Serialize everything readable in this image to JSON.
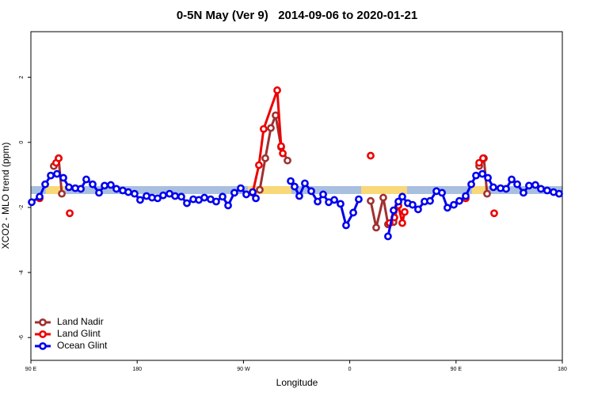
{
  "chart_data": {
    "type": "line",
    "title": "0-5N May (Ver 9)   2014-09-06 to 2020-01-21",
    "x_label": "Longitude",
    "y_label": "XCO2 - MLO trend (ppm)",
    "xlim": [
      90,
      540
    ],
    "ylim": [
      -6.7,
      3.4
    ],
    "xticks": [
      {
        "value": 90,
        "label": "90 E"
      },
      {
        "value": 180,
        "label": "180"
      },
      {
        "value": 270,
        "label": "90 W"
      },
      {
        "value": 360,
        "label": "0"
      },
      {
        "value": 450,
        "label": "90 E"
      },
      {
        "value": 540,
        "label": "180"
      }
    ],
    "yticks": [
      -6,
      -4,
      -2,
      0,
      2
    ],
    "grid": false,
    "legend": "bottom-left",
    "series": [
      {
        "name": "Land Nadir",
        "color": "#a03030",
        "x": [
          109.4,
          113.5,
          116.2,
          null,
          283.8,
          288.5,
          293.2,
          297.2,
          301.9,
          307.3,
          null,
          377.7,
          382.4,
          388.4,
          392.4,
          397.1,
          null,
          469.6,
          473.6,
          476.3
        ],
        "values": [
          -0.73,
          -0.49,
          -1.58,
          null,
          -1.46,
          -0.49,
          0.44,
          0.83,
          -0.15,
          -0.56,
          null,
          -1.8,
          -2.62,
          -1.7,
          -2.52,
          -2.45,
          null,
          -0.73,
          -0.49,
          -1.58
        ]
      },
      {
        "name": "Land Glint",
        "color": "#ee0000",
        "x": [
          97.4,
          null,
          111.4,
          113.5,
          null,
          122.9,
          null,
          277.8,
          283.1,
          287.1,
          298.6,
          301.9,
          303.3,
          null,
          377.7,
          null,
          393.8,
          397.8,
          401.2,
          404.5,
          406.5,
          null,
          458.2,
          null,
          469.6,
          472.9,
          null,
          482.3
        ],
        "values": [
          -1.72,
          null,
          -0.63,
          -0.49,
          null,
          -2.18,
          null,
          -1.55,
          -0.7,
          0.41,
          1.6,
          -0.12,
          -0.34,
          null,
          -0.41,
          null,
          -2.48,
          -2.31,
          -1.94,
          -2.48,
          -2.14,
          null,
          -1.72,
          null,
          -0.63,
          -0.49,
          null,
          -2.18
        ]
      },
      {
        "name": "Ocean Glint",
        "color": "#0000ee",
        "x": [
          90.7,
          97.4,
          102.1,
          106.8,
          112.1,
          117.5,
          122.2,
          127.6,
          132.3,
          136.9,
          142.3,
          147.7,
          152.4,
          157.7,
          162.4,
          167.8,
          172.5,
          177.8,
          182.5,
          187.9,
          192.6,
          197.3,
          202.0,
          207.4,
          212.1,
          217.4,
          222.1,
          227.5,
          232.2,
          236.9,
          242.2,
          246.9,
          252.3,
          257.0,
          262.3,
          267.7,
          272.4,
          277.8,
          280.5,
          null,
          310.0,
          313.3,
          317.3,
          322.0,
          327.4,
          332.8,
          337.5,
          342.2,
          346.9,
          352.2,
          356.9,
          363.0,
          367.6,
          null,
          392.4,
          397.1,
          401.2,
          404.5,
          409.2,
          413.2,
          417.9,
          423.3,
          428.0,
          433.4,
          438.1,
          442.7,
          448.1,
          452.8,
          458.2,
          462.9,
          466.9,
          472.3,
          477.0,
          481.6,
          487.7,
          492.4,
          497.1,
          501.8,
          507.1,
          511.8,
          517.2,
          521.9,
          527.2,
          532.6,
          537.3
        ],
        "values": [
          -1.84,
          -1.67,
          -1.29,
          -1.02,
          -0.97,
          -1.09,
          -1.38,
          -1.41,
          -1.43,
          -1.14,
          -1.29,
          -1.55,
          -1.33,
          -1.31,
          -1.43,
          -1.48,
          -1.53,
          -1.58,
          -1.77,
          -1.65,
          -1.7,
          -1.72,
          -1.63,
          -1.58,
          -1.65,
          -1.67,
          -1.87,
          -1.75,
          -1.77,
          -1.7,
          -1.75,
          -1.82,
          -1.67,
          -1.94,
          -1.55,
          -1.41,
          -1.6,
          -1.53,
          -1.72,
          null,
          -1.19,
          -1.36,
          -1.65,
          -1.26,
          -1.5,
          -1.82,
          -1.6,
          -1.84,
          -1.77,
          -1.89,
          -2.55,
          -2.16,
          -1.75,
          null,
          -2.89,
          -2.09,
          -1.82,
          -1.67,
          -1.87,
          -1.92,
          -2.06,
          -1.82,
          -1.8,
          -1.5,
          -1.55,
          -2.01,
          -1.92,
          -1.8,
          -1.65,
          -1.29,
          -1.02,
          -0.97,
          -1.09,
          -1.38,
          -1.41,
          -1.43,
          -1.14,
          -1.29,
          -1.55,
          -1.33,
          -1.31,
          -1.43,
          -1.48,
          -1.53,
          -1.58
        ]
      }
    ]
  }
}
